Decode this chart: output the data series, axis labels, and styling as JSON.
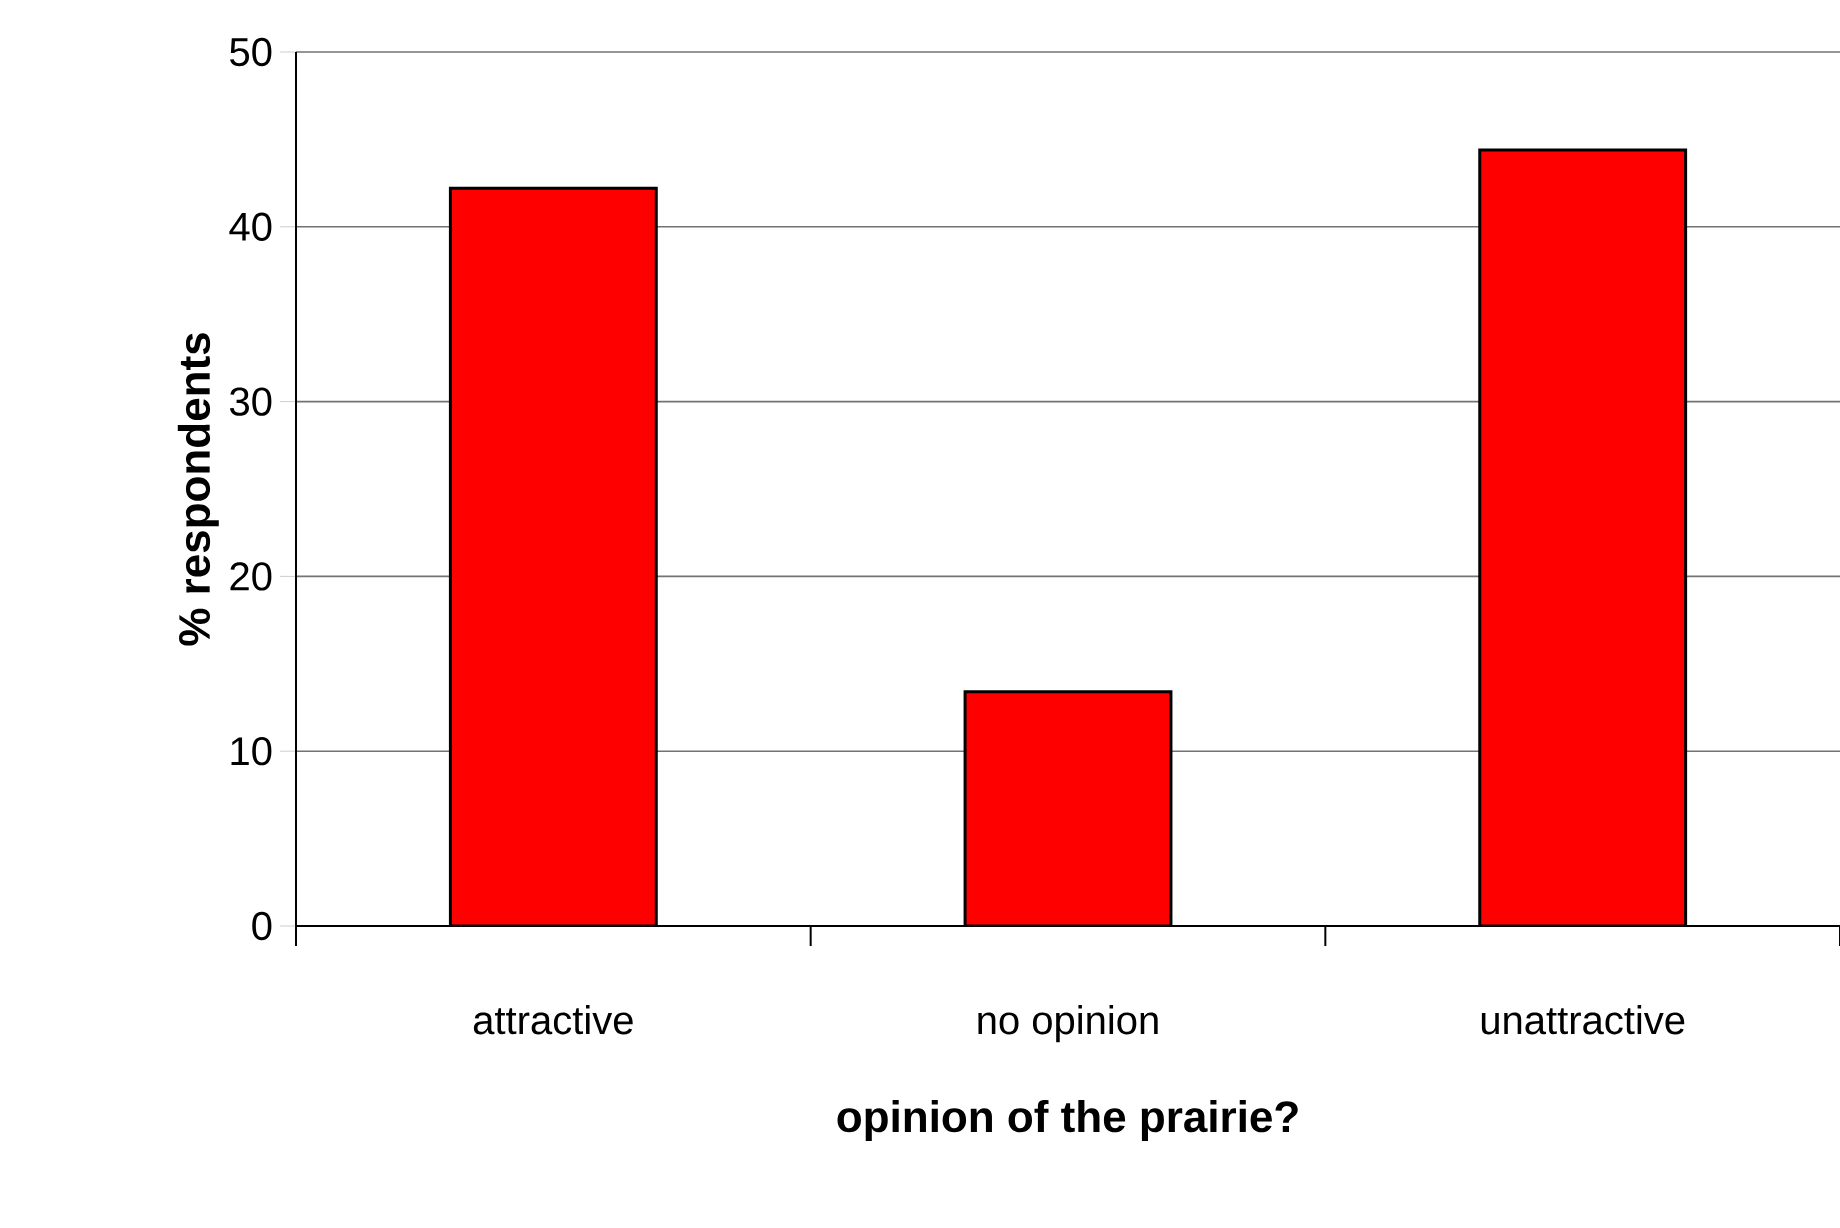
{
  "chart_data": {
    "type": "bar",
    "xlabel": "opinion of the prairie?",
    "ylabel": "% respondents",
    "categories": [
      "attractive",
      "no opinion",
      "unattractive"
    ],
    "values": [
      42.2,
      13.4,
      44.4
    ],
    "color": "#ff0000",
    "ylim": [
      0,
      50
    ],
    "yticks": [
      0,
      10,
      20,
      30,
      40,
      50
    ],
    "grid": "y"
  }
}
